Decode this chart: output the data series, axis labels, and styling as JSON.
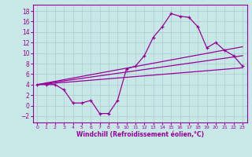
{
  "xlabel": "Windchill (Refroidissement éolien,°C)",
  "background_color": "#c8e8e8",
  "line_color": "#990099",
  "grid_color": "#aacccc",
  "xlim": [
    -0.5,
    23.5
  ],
  "ylim": [
    -3.2,
    19.2
  ],
  "yticks": [
    -2,
    0,
    2,
    4,
    6,
    8,
    10,
    12,
    14,
    16,
    18
  ],
  "xticks": [
    0,
    1,
    2,
    3,
    4,
    5,
    6,
    7,
    8,
    9,
    10,
    11,
    12,
    13,
    14,
    15,
    16,
    17,
    18,
    19,
    20,
    21,
    22,
    23
  ],
  "curve1_x": [
    0,
    1,
    2,
    3,
    4,
    5,
    6,
    7,
    8,
    9,
    10,
    11,
    12,
    13,
    14,
    15,
    16,
    17,
    18,
    19,
    20,
    21,
    22,
    23
  ],
  "curve1_y": [
    4.0,
    4.0,
    4.0,
    3.0,
    0.5,
    0.5,
    1.0,
    -1.5,
    -1.5,
    1.0,
    7.0,
    7.5,
    9.5,
    13.0,
    15.0,
    17.5,
    17.0,
    16.8,
    15.0,
    11.0,
    12.0,
    10.5,
    9.5,
    7.5
  ],
  "line1_x": [
    0,
    23
  ],
  "line1_y": [
    4.0,
    11.2
  ],
  "line2_x": [
    0,
    23
  ],
  "line2_y": [
    4.0,
    9.5
  ],
  "line3_x": [
    0,
    23
  ],
  "line3_y": [
    4.0,
    7.2
  ]
}
